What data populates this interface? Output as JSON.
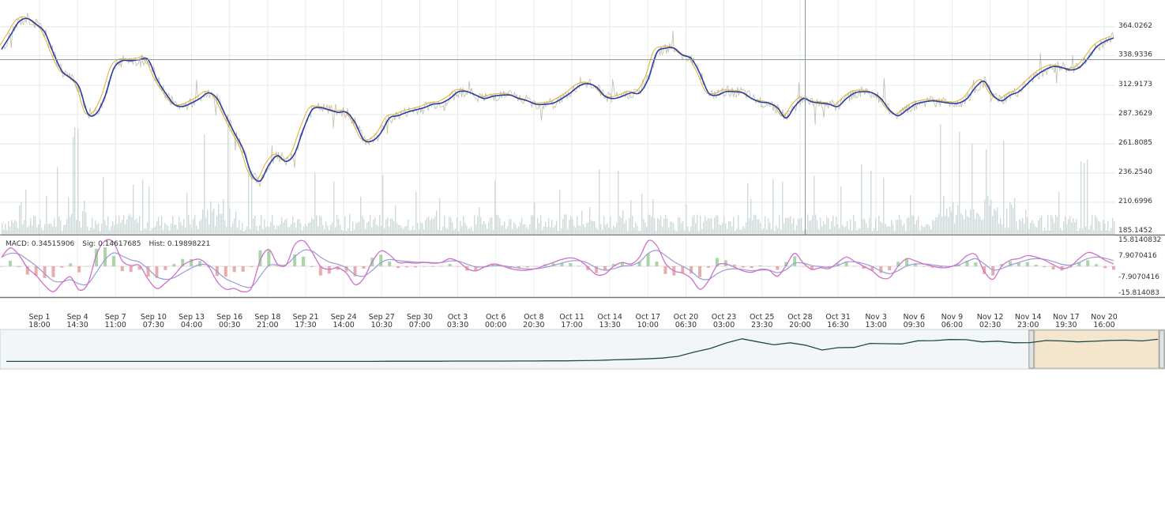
{
  "chart_data": {
    "type": "line",
    "price_panel": {
      "y_ticks": [
        "364.0262",
        "338.9336",
        "312.9173",
        "287.3629",
        "261.8085",
        "236.2540",
        "210.6996",
        "185.1452"
      ],
      "y_tick_values": [
        364.0262,
        338.9336,
        312.9173,
        287.3629,
        261.8085,
        236.254,
        210.6996,
        185.1452
      ],
      "crosshair_value": "338.9336",
      "ylim": [
        185.1452,
        364.0262
      ],
      "grid": true,
      "series": [
        {
          "name": "",
          "color": "#2a3da8",
          "values": [
            343,
            355,
            367,
            370,
            365,
            358,
            340,
            324,
            318,
            310,
            287,
            287,
            302,
            326,
            333,
            333,
            334,
            334,
            317,
            305,
            295,
            293,
            296,
            300,
            305,
            300,
            285,
            270,
            256,
            234,
            228,
            242,
            250,
            245,
            252,
            273,
            290,
            292,
            290,
            288,
            288,
            279,
            264,
            263,
            270,
            283,
            285,
            288,
            290,
            292,
            295,
            296,
            300,
            306,
            306,
            303,
            300,
            302,
            303,
            303,
            300,
            298,
            295,
            295,
            296,
            300,
            305,
            311,
            313,
            310,
            302,
            300,
            302,
            305,
            305,
            317,
            340,
            344,
            344,
            338,
            335,
            322,
            305,
            303,
            306,
            306,
            305,
            300,
            297,
            296,
            292,
            283,
            293,
            300,
            297,
            296,
            295,
            293,
            300,
            305,
            306,
            305,
            300,
            290,
            285,
            290,
            295,
            297,
            298,
            297,
            296,
            296,
            300,
            310,
            315,
            303,
            298,
            303,
            306,
            313,
            320,
            325,
            328,
            327,
            325,
            327,
            335,
            345,
            350,
            353
          ]
        },
        {
          "name": "",
          "color": "#e0b030",
          "values": []
        }
      ],
      "volume": {
        "color": "#c7d3d3"
      }
    },
    "macd_panel": {
      "MACD": "0.34515906",
      "Sig": "0.14617685",
      "Hist": "0.19898221",
      "y_ticks": [
        "15.8140832",
        "7.9070416",
        "-7.9070416",
        "-15.814083"
      ],
      "y_tick_values": [
        15.8140832,
        7.9070416,
        -7.9070416,
        -15.814083
      ],
      "ylim": [
        -15.814083,
        15.8140832
      ],
      "series": [
        {
          "name": "MACD",
          "color": "#d070c8"
        },
        {
          "name": "Sig",
          "color": "#9b9bd8"
        },
        {
          "name": "Hist",
          "color": "#70b870"
        }
      ]
    },
    "x_ticks": [
      {
        "date": "Sep 1",
        "time": "18:00"
      },
      {
        "date": "Sep 4",
        "time": "14:30"
      },
      {
        "date": "Sep 7",
        "time": "11:00"
      },
      {
        "date": "Sep 10",
        "time": "07:30"
      },
      {
        "date": "Sep 13",
        "time": "04:00"
      },
      {
        "date": "Sep 16",
        "time": "00:30"
      },
      {
        "date": "Sep 18",
        "time": "21:00"
      },
      {
        "date": "Sep 21",
        "time": "17:30"
      },
      {
        "date": "Sep 24",
        "time": "14:00"
      },
      {
        "date": "Sep 27",
        "time": "10:30"
      },
      {
        "date": "Sep 30",
        "time": "07:00"
      },
      {
        "date": "Oct 3",
        "time": "03:30"
      },
      {
        "date": "Oct 6",
        "time": "00:00"
      },
      {
        "date": "Oct 8",
        "time": "20:30"
      },
      {
        "date": "Oct 11",
        "time": "17:00"
      },
      {
        "date": "Oct 14",
        "time": "13:30"
      },
      {
        "date": "Oct 17",
        "time": "10:00"
      },
      {
        "date": "Oct 20",
        "time": "06:30"
      },
      {
        "date": "Oct 23",
        "time": "03:00"
      },
      {
        "date": "Oct 25",
        "time": "23:30"
      },
      {
        "date": "Oct 28",
        "time": "20:00"
      },
      {
        "date": "Oct 31",
        "time": "16:30"
      },
      {
        "date": "Nov 3",
        "time": "13:00"
      },
      {
        "date": "Nov 6",
        "time": "09:30"
      },
      {
        "date": "Nov 9",
        "time": "06:00"
      },
      {
        "date": "Nov 12",
        "time": "02:30"
      },
      {
        "date": "Nov 14",
        "time": "23:00"
      },
      {
        "date": "Nov 17",
        "time": "19:30"
      },
      {
        "date": "Nov 20",
        "time": "16:00"
      }
    ],
    "navigator": {
      "line_color": "#1e4a4a",
      "selection_color": "#f3e6cc",
      "values": [
        0.02,
        0.02,
        0.02,
        0.02,
        0.02,
        0.02,
        0.02,
        0.02,
        0.02,
        0.02,
        0.02,
        0.02,
        0.02,
        0.02,
        0.02,
        0.02,
        0.02,
        0.02,
        0.02,
        0.02,
        0.02,
        0.02,
        0.02,
        0.02,
        0.025,
        0.025,
        0.025,
        0.025,
        0.03,
        0.03,
        0.03,
        0.03,
        0.035,
        0.035,
        0.04,
        0.04,
        0.05,
        0.06,
        0.08,
        0.1,
        0.12,
        0.15,
        0.22,
        0.4,
        0.55,
        0.75,
        0.9,
        0.75,
        0.7,
        0.8,
        0.65,
        0.5,
        0.6,
        0.55,
        0.7,
        0.72,
        0.75,
        0.8,
        0.82,
        0.92,
        0.85,
        0.8,
        0.82,
        0.78,
        0.8,
        0.82,
        0.8,
        0.8,
        0.82,
        0.8,
        0.82,
        0.85,
        0.9
      ],
      "selection_from": 0.888,
      "selection_to": 1.0
    }
  }
}
